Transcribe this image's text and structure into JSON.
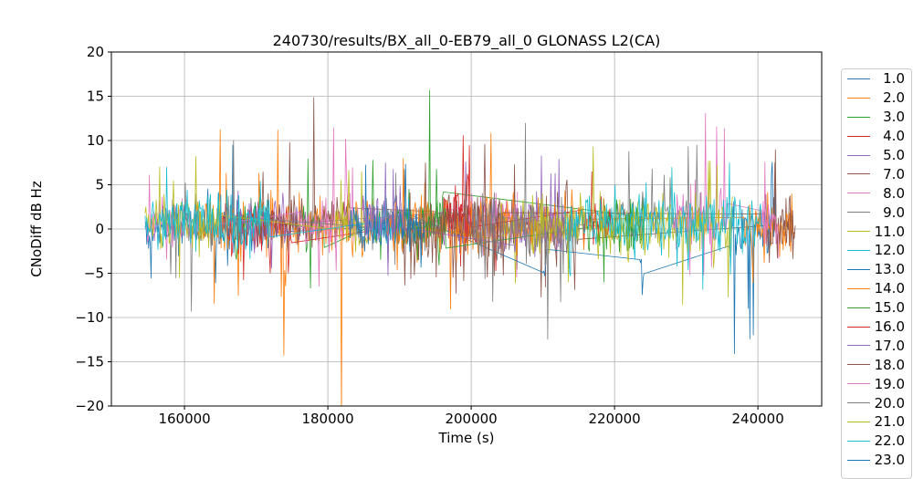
{
  "figure": {
    "title": "240730/results/BX_all_0-EB79_all_0 GLONASS L2(CA)"
  },
  "axes": {
    "xlabel": "Time (s)",
    "ylabel": "CNoDiff dB Hz",
    "xticks": [
      {
        "value": 160000,
        "label": "160000"
      },
      {
        "value": 180000,
        "label": "180000"
      },
      {
        "value": 200000,
        "label": "200000"
      },
      {
        "value": 220000,
        "label": "220000"
      },
      {
        "value": 240000,
        "label": "240000"
      }
    ],
    "yticks": [
      {
        "value": 20,
        "label": "20"
      },
      {
        "value": 15,
        "label": "15"
      },
      {
        "value": 10,
        "label": "10"
      },
      {
        "value": 5,
        "label": "5"
      },
      {
        "value": 0,
        "label": "0"
      },
      {
        "value": -5,
        "label": "−5"
      },
      {
        "value": -10,
        "label": "−10"
      },
      {
        "value": -15,
        "label": "−15"
      },
      {
        "value": -20,
        "label": "−20"
      }
    ]
  },
  "legend": {
    "items": [
      {
        "label": "1.0",
        "color": "#1f77b4"
      },
      {
        "label": "2.0",
        "color": "#ff7f0e"
      },
      {
        "label": "3.0",
        "color": "#2ca02c"
      },
      {
        "label": "4.0",
        "color": "#d62728"
      },
      {
        "label": "5.0",
        "color": "#9467bd"
      },
      {
        "label": "7.0",
        "color": "#8c564b"
      },
      {
        "label": "8.0",
        "color": "#e377c2"
      },
      {
        "label": "9.0",
        "color": "#7f7f7f"
      },
      {
        "label": "11.0",
        "color": "#bcbd22"
      },
      {
        "label": "12.0",
        "color": "#17becf"
      },
      {
        "label": "13.0",
        "color": "#1f77b4"
      },
      {
        "label": "14.0",
        "color": "#ff7f0e"
      },
      {
        "label": "15.0",
        "color": "#2ca02c"
      },
      {
        "label": "16.0",
        "color": "#d62728"
      },
      {
        "label": "17.0",
        "color": "#9467bd"
      },
      {
        "label": "18.0",
        "color": "#8c564b"
      },
      {
        "label": "19.0",
        "color": "#e377c2"
      },
      {
        "label": "20.0",
        "color": "#7f7f7f"
      },
      {
        "label": "21.0",
        "color": "#bcbd22"
      },
      {
        "label": "22.0",
        "color": "#17becf"
      },
      {
        "label": "23.0",
        "color": "#1f77b4",
        "partially_visible": true
      }
    ]
  },
  "chart_data": {
    "type": "line",
    "title": "240730/results/BX_all_0-EB79_all_0 GLONASS L2(CA)",
    "xlabel": "Time (s)",
    "ylabel": "CNoDiff dB Hz",
    "xlim": [
      149800,
      248900
    ],
    "ylim": [
      -20,
      20
    ],
    "grid": true,
    "grid_color": "#b0b0b0",
    "legend_position": "right-outside",
    "line_width": 0.8,
    "sample_step_s": 120,
    "description": "Noisy CNo difference time series per GLONASS slot; dense noise bands around 0 to +2 dB-Hz with sparse-gap connector lines and isolated spikes.",
    "series": [
      {
        "name": "1.0",
        "color": "#1f77b4",
        "seed": 101,
        "noise_std": 1.7,
        "segments": [
          {
            "t0": 154500,
            "t1": 173000,
            "mean": 0.3
          },
          {
            "t0": 185500,
            "t1": 190500,
            "mean": 0.5
          }
        ],
        "spikes": [
          {
            "t": 155300,
            "v": -5.6
          },
          {
            "t": 166700,
            "v": 9.5
          }
        ]
      },
      {
        "name": "2.0",
        "color": "#ff7f0e",
        "seed": 102,
        "noise_std": 2.0,
        "segments": [
          {
            "t0": 161500,
            "t1": 186500,
            "mean": 0.6
          }
        ],
        "spikes": [
          {
            "t": 173000,
            "v": 11.2
          },
          {
            "t": 173900,
            "v": -14.3
          },
          {
            "t": 181900,
            "v": -21.5
          }
        ]
      },
      {
        "name": "3.0",
        "color": "#2ca02c",
        "seed": 103,
        "noise_std": 1.8,
        "segments": [
          {
            "t0": 167000,
            "t1": 171000,
            "mean": 0.8
          },
          {
            "t0": 176500,
            "t1": 179500,
            "mean": 0.5
          },
          {
            "t0": 185800,
            "t1": 196200,
            "mean": 0.8
          },
          {
            "t0": 222000,
            "t1": 224500,
            "mean": 0.5
          }
        ],
        "spikes": [
          {
            "t": 177600,
            "v": -6.7
          },
          {
            "t": 186300,
            "v": 7.8
          },
          {
            "t": 194200,
            "v": 15.7
          }
        ]
      },
      {
        "name": "4.0",
        "color": "#d62728",
        "seed": 104,
        "noise_std": 1.9,
        "segments": [
          {
            "t0": 165000,
            "t1": 175000,
            "mean": 0.5
          },
          {
            "t0": 196000,
            "t1": 204500,
            "mean": 1.2
          }
        ],
        "spikes": [
          {
            "t": 172000,
            "v": -5.0
          },
          {
            "t": 198900,
            "v": 10.6
          }
        ]
      },
      {
        "name": "5.0",
        "color": "#9467bd",
        "seed": 105,
        "noise_std": 1.8,
        "segments": [
          {
            "t0": 167000,
            "t1": 177000,
            "mean": 0.8
          },
          {
            "t0": 196000,
            "t1": 212000,
            "mean": 0.5
          }
        ],
        "spikes": [
          {
            "t": 176900,
            "v": 9.2
          },
          {
            "t": 201100,
            "v": -7.2
          },
          {
            "t": 209800,
            "v": 8.3
          }
        ]
      },
      {
        "name": "7.0",
        "color": "#8c564b",
        "seed": 107,
        "noise_std": 1.9,
        "segments": [
          {
            "t0": 170000,
            "t1": 183000,
            "mean": 0.8
          },
          {
            "t0": 195000,
            "t1": 215000,
            "mean": 0.3
          },
          {
            "t0": 242000,
            "t1": 245200,
            "mean": 0.2
          }
        ],
        "spikes": [
          {
            "t": 178000,
            "v": 14.9
          },
          {
            "t": 196500,
            "v": 6.0
          }
        ]
      },
      {
        "name": "8.0",
        "color": "#e377c2",
        "seed": 108,
        "noise_std": 1.8,
        "segments": [
          {
            "t0": 154500,
            "t1": 162000,
            "mean": 0.8
          },
          {
            "t0": 176000,
            "t1": 186200,
            "mean": 0.8
          },
          {
            "t0": 199500,
            "t1": 206500,
            "mean": 1.5
          }
        ],
        "spikes": [
          {
            "t": 178800,
            "v": -6.5
          },
          {
            "t": 202800,
            "v": 9.5
          }
        ]
      },
      {
        "name": "9.0",
        "color": "#7f7f7f",
        "seed": 109,
        "noise_std": 1.8,
        "segments": [
          {
            "t0": 157000,
            "t1": 168000,
            "mean": 0.3
          },
          {
            "t0": 186000,
            "t1": 196000,
            "mean": 0.5
          },
          {
            "t0": 219000,
            "t1": 232500,
            "mean": 1.0
          }
        ],
        "spikes": [
          {
            "t": 164500,
            "v": 12.5
          },
          {
            "t": 222000,
            "v": 8.8
          },
          {
            "t": 231500,
            "v": 9.5
          }
        ]
      },
      {
        "name": "11.0",
        "color": "#bcbd22",
        "seed": 111,
        "noise_std": 1.7,
        "segments": [
          {
            "t0": 154500,
            "t1": 165000,
            "mean": 0.8
          },
          {
            "t0": 181000,
            "t1": 186000,
            "mean": 0.8
          },
          {
            "t0": 204000,
            "t1": 209000,
            "mean": 0.5
          }
        ],
        "spikes": [
          {
            "t": 158500,
            "v": 5.5
          }
        ]
      },
      {
        "name": "12.0",
        "color": "#17becf",
        "seed": 112,
        "noise_std": 1.8,
        "segments": [
          {
            "t0": 154500,
            "t1": 172000,
            "mean": 0.6
          },
          {
            "t0": 186000,
            "t1": 192000,
            "mean": 0.5
          }
        ],
        "spikes": [
          {
            "t": 157500,
            "v": 7.0
          },
          {
            "t": 162000,
            "v": 8.5
          }
        ]
      },
      {
        "name": "13.0",
        "color": "#1f77b4",
        "seed": 113,
        "noise_std": 1.6,
        "segments": [
          {
            "t0": 183000,
            "t1": 190000,
            "mean": 0.0
          },
          {
            "t0": 210000,
            "t1": 210600,
            "mean": -3.7
          },
          {
            "t0": 223500,
            "t1": 224200,
            "mean": -4.8
          },
          {
            "t0": 236000,
            "t1": 242500,
            "mean": 0.0,
            "std": 2.6
          }
        ],
        "spikes": [
          {
            "t": 238600,
            "v": -9.0
          },
          {
            "t": 239400,
            "v": -12.0
          }
        ]
      },
      {
        "name": "14.0",
        "color": "#ff7f0e",
        "seed": 114,
        "noise_std": 2.2,
        "segments": [
          {
            "t0": 188000,
            "t1": 216000,
            "mean": 0.3
          },
          {
            "t0": 238000,
            "t1": 245200,
            "mean": 0.2,
            "std": 1.8
          }
        ],
        "spikes": [
          {
            "t": 190500,
            "v": 8.0
          }
        ]
      },
      {
        "name": "15.0",
        "color": "#2ca02c",
        "seed": 115,
        "noise_std": 1.7,
        "segments": [
          {
            "t0": 189500,
            "t1": 196500,
            "mean": 0.5
          },
          {
            "t0": 216000,
            "t1": 224000,
            "mean": 0.3
          }
        ],
        "spikes": [
          {
            "t": 218500,
            "v": -6.0
          }
        ]
      },
      {
        "name": "16.0",
        "color": "#d62728",
        "seed": 116,
        "noise_std": 1.8,
        "segments": [
          {
            "t0": 196500,
            "t1": 200000,
            "mean": 1.5
          },
          {
            "t0": 215500,
            "t1": 219500,
            "mean": 1.0
          }
        ],
        "spikes": [
          {
            "t": 199800,
            "v": 7.5
          },
          {
            "t": 216800,
            "v": 6.5
          }
        ]
      },
      {
        "name": "17.0",
        "color": "#9467bd",
        "seed": 117,
        "noise_std": 1.8,
        "segments": [
          {
            "t0": 184800,
            "t1": 191000,
            "mean": 1.0
          },
          {
            "t0": 206000,
            "t1": 213000,
            "mean": 0.5
          }
        ],
        "spikes": [
          {
            "t": 188000,
            "v": 7.5
          }
        ]
      },
      {
        "name": "18.0",
        "color": "#8c564b",
        "seed": 118,
        "noise_std": 1.9,
        "segments": [
          {
            "t0": 190500,
            "t1": 204500,
            "mean": 0.3
          },
          {
            "t0": 241000,
            "t1": 245200,
            "mean": 0.3
          }
        ],
        "spikes": [
          {
            "t": 197500,
            "v": -5.5
          }
        ]
      },
      {
        "name": "19.0",
        "color": "#e377c2",
        "seed": 119,
        "noise_std": 2.0,
        "segments": [
          {
            "t0": 228000,
            "t1": 235800,
            "mean": 1.0
          },
          {
            "t0": 240500,
            "t1": 243000,
            "mean": 0.5
          }
        ],
        "spikes": [
          {
            "t": 230500,
            "v": -5.2
          },
          {
            "t": 232700,
            "v": 13.1
          }
        ]
      },
      {
        "name": "20.0",
        "color": "#7f7f7f",
        "seed": 120,
        "noise_std": 2.4,
        "segments": [
          {
            "t0": 200000,
            "t1": 215200,
            "mean": 0.0
          }
        ],
        "spikes": [
          {
            "t": 204500,
            "v": 7.0
          },
          {
            "t": 210700,
            "v": -12.5
          }
        ]
      },
      {
        "name": "21.0",
        "color": "#bcbd22",
        "seed": 121,
        "noise_std": 2.1,
        "segments": [
          {
            "t0": 208500,
            "t1": 236500,
            "mean": 0.5
          }
        ],
        "spikes": [
          {
            "t": 213500,
            "v": -6.0
          },
          {
            "t": 217000,
            "v": 9.3
          },
          {
            "t": 225000,
            "v": -8.5
          },
          {
            "t": 229500,
            "v": -8.6
          }
        ]
      },
      {
        "name": "22.0",
        "color": "#17becf",
        "seed": 122,
        "noise_std": 2.0,
        "segments": [
          {
            "t0": 213000,
            "t1": 240500,
            "mean": 0.5
          }
        ],
        "spikes": [
          {
            "t": 228000,
            "v": 7.0
          },
          {
            "t": 236000,
            "v": 7.5
          }
        ]
      },
      {
        "name": "23.0",
        "color": "#1f77b4",
        "seed": 123,
        "noise_std": 1.5,
        "segments": [
          {
            "t0": 190000,
            "t1": 193500,
            "mean": 0.5
          }
        ],
        "spikes": []
      }
    ]
  }
}
